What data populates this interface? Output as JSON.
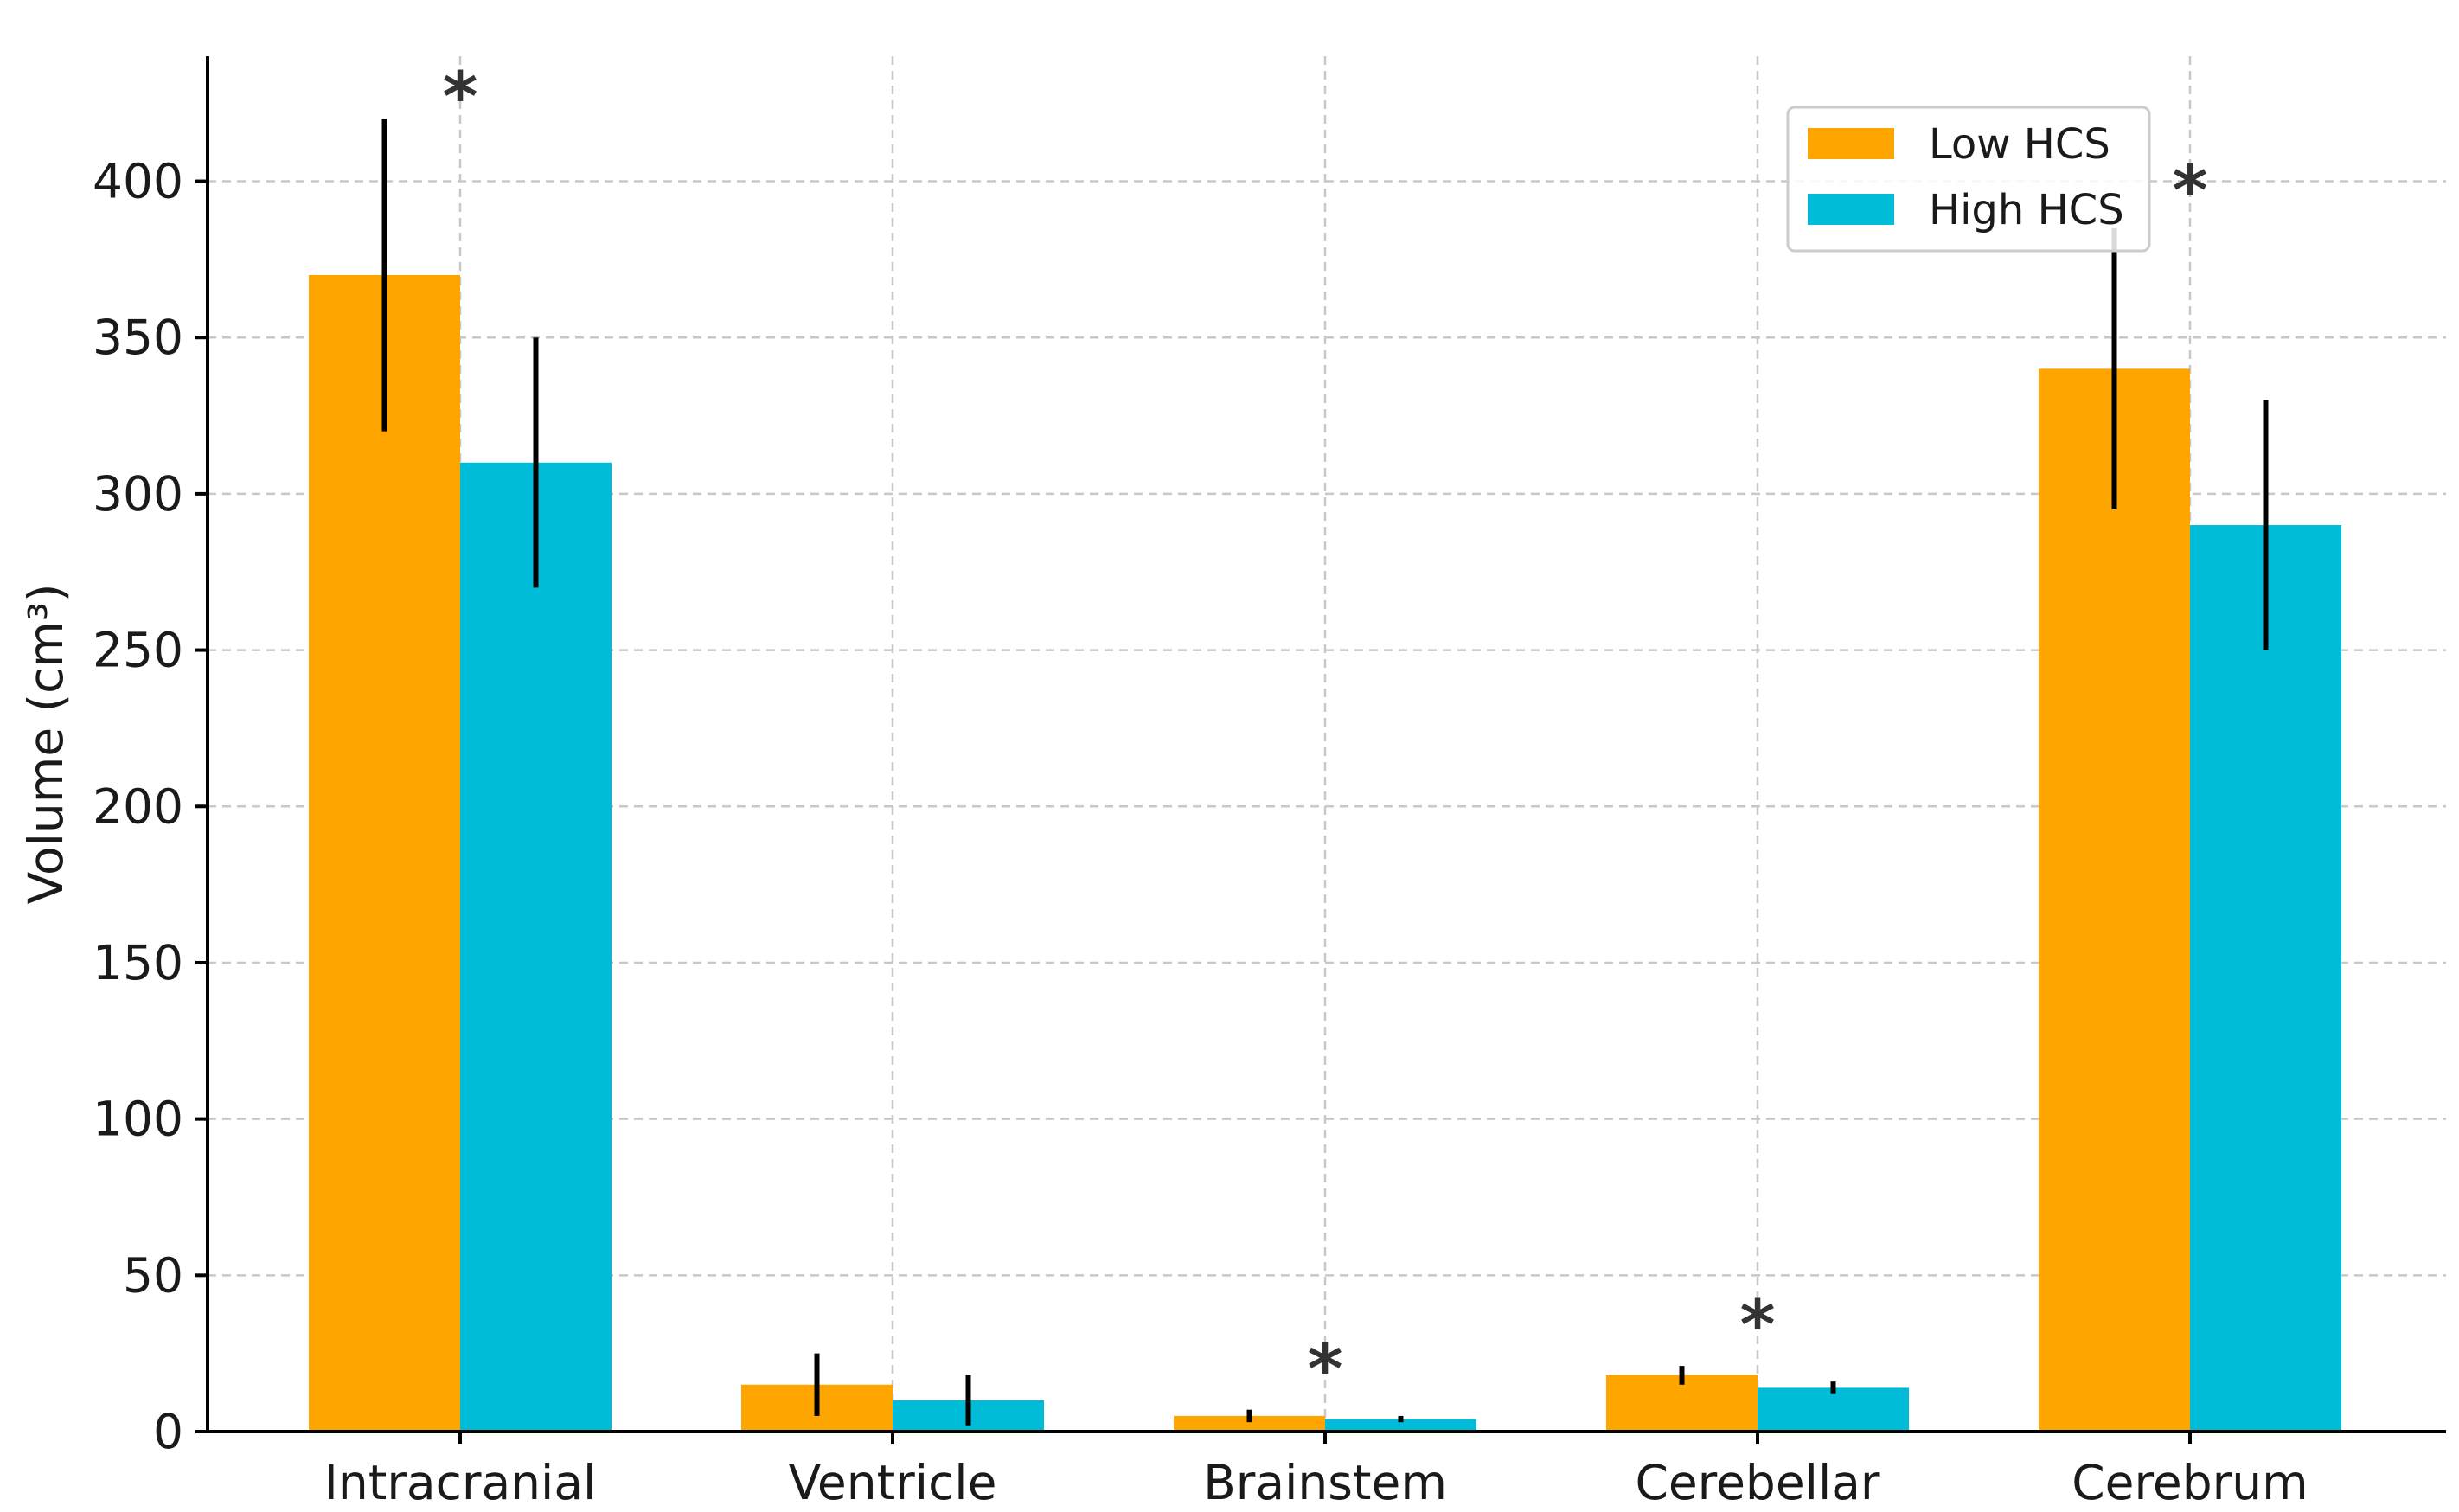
{
  "chart_data": {
    "type": "bar",
    "categories": [
      "Intracranial",
      "Ventricle",
      "Brainstem",
      "Cerebellar",
      "Cerebrum"
    ],
    "series": [
      {
        "name": "Low HCS",
        "color": "#FFA500",
        "values": [
          370,
          15,
          5,
          18,
          340
        ],
        "error": [
          50,
          10,
          2,
          3,
          45
        ]
      },
      {
        "name": "High HCS",
        "color": "#00BCD9",
        "values": [
          310,
          10,
          4,
          14,
          290
        ],
        "error": [
          40,
          8,
          1,
          2,
          40
        ]
      }
    ],
    "significance": [
      {
        "category_index": 0,
        "label": "*",
        "y": 435
      },
      {
        "category_index": 2,
        "label": "*",
        "y": 28
      },
      {
        "category_index": 3,
        "label": "*",
        "y": 42
      },
      {
        "category_index": 4,
        "label": "*",
        "y": 405
      }
    ],
    "title": "",
    "xlabel": "",
    "ylabel": "Volume (cm³)",
    "ylim": [
      0,
      440
    ],
    "yticks": [
      0,
      50,
      100,
      150,
      200,
      250,
      300,
      350,
      400
    ],
    "grid": true,
    "legend_position": "top-right"
  }
}
